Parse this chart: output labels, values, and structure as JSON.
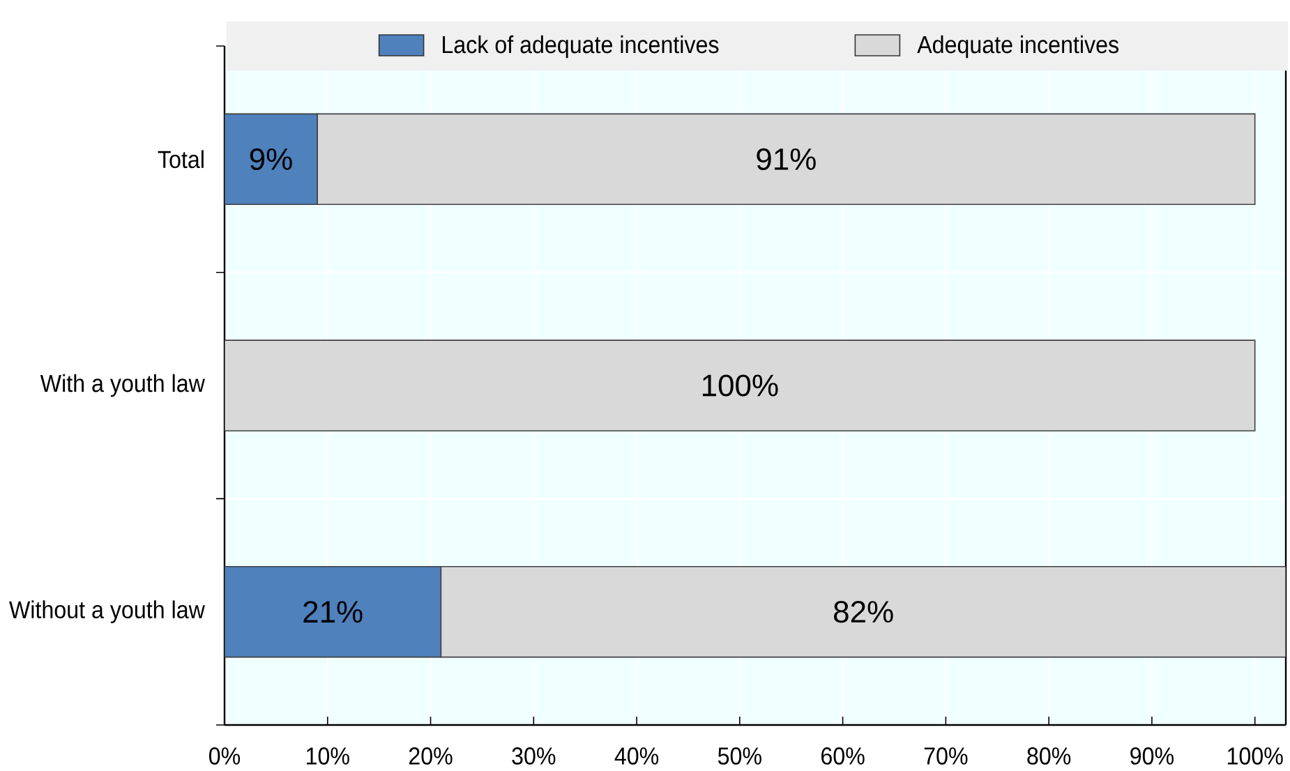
{
  "chart_data": {
    "type": "bar",
    "orientation": "horizontal",
    "stacked": true,
    "categories": [
      "Total",
      "With a youth law",
      "Without a youth law"
    ],
    "series": [
      {
        "name": "Lack of adequate incentives",
        "color": "#4f81bd",
        "values": [
          9,
          0,
          21
        ],
        "value_labels": [
          "9%",
          null,
          "21%"
        ]
      },
      {
        "name": "Adequate incentives",
        "color": "#d9d9d9",
        "values": [
          91,
          100,
          82
        ],
        "value_labels": [
          "91%",
          "100%",
          "82%"
        ]
      }
    ],
    "xlim": [
      0,
      103
    ],
    "xticks": [
      {
        "value": 0,
        "label": "0%"
      },
      {
        "value": 10,
        "label": "10%"
      },
      {
        "value": 20,
        "label": "20%"
      },
      {
        "value": 30,
        "label": "30%"
      },
      {
        "value": 40,
        "label": "40%"
      },
      {
        "value": 50,
        "label": "50%"
      },
      {
        "value": 60,
        "label": "60%"
      },
      {
        "value": 70,
        "label": "70%"
      },
      {
        "value": 80,
        "label": "80%"
      },
      {
        "value": 90,
        "label": "90%"
      },
      {
        "value": 100,
        "label": "100%"
      }
    ],
    "grid": true,
    "legend": "top"
  }
}
